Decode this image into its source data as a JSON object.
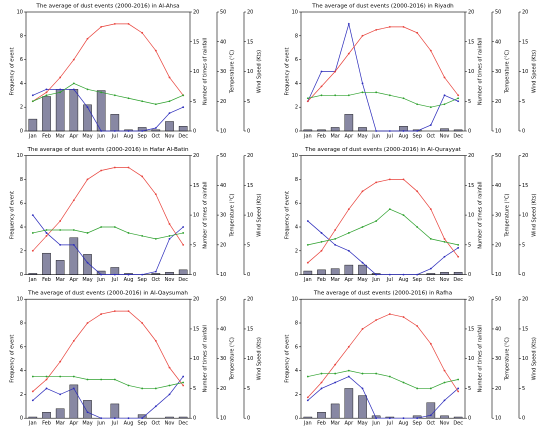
{
  "chart_data": [
    {
      "type": "bar",
      "title": "The average of dust events (2000-2016) in Al-Ahsa",
      "categories": [
        "Jan",
        "Feb",
        "Mar",
        "Apr",
        "May",
        "Jun",
        "Jul",
        "Aug",
        "Sep",
        "Oct",
        "Nov",
        "Dec"
      ],
      "values": [
        1,
        2.9,
        3.5,
        3.5,
        2.2,
        3.4,
        1.4,
        0.1,
        0.3,
        0.1,
        0.8,
        0.4
      ],
      "color": "#6a6a8c",
      "ylabel": "Frequency of event",
      "ylim": [
        0,
        10
      ],
      "yticks": [
        0,
        2,
        4,
        6,
        8,
        10
      ],
      "y2label": "Number of times of rainfall",
      "y2lim": [
        0,
        20
      ],
      "y2ticks": [
        0,
        5,
        10,
        15,
        20
      ],
      "y3label": "Temperature (°C)",
      "y3lim": [
        10,
        50
      ],
      "y3ticks": [
        10,
        20,
        30,
        40,
        50
      ],
      "y4label": "Wind Speed (Kts)",
      "y4lim": [
        0,
        20
      ],
      "y4ticks": [
        0,
        5,
        10,
        15,
        20
      ],
      "series": [
        {
          "axis": "y2",
          "color": "#2b2bbb",
          "values": [
            6,
            7,
            7,
            7,
            4,
            0,
            0,
            0,
            0,
            0.5,
            3,
            4
          ]
        },
        {
          "axis": "y3",
          "color": "#e8413a",
          "values": [
            20,
            23,
            28,
            34,
            41,
            45,
            46,
            46,
            43,
            37,
            28,
            22
          ]
        },
        {
          "axis": "y4",
          "color": "#2ca02c",
          "values": [
            5,
            6,
            6.5,
            8,
            7,
            6.5,
            6,
            5.5,
            5,
            4.5,
            5,
            6
          ]
        }
      ]
    },
    {
      "type": "bar",
      "title": "The average of dust events (2000-2016) in Riyadh",
      "categories": [
        "Jan",
        "Feb",
        "Mar",
        "Apr",
        "May",
        "Jun",
        "Jul",
        "Aug",
        "Sep",
        "Oct",
        "Nov",
        "Dec"
      ],
      "values": [
        0.1,
        0.1,
        0.3,
        1.4,
        0.3,
        0,
        0,
        0.4,
        0.1,
        0,
        0.2,
        0.1
      ],
      "color": "#6a6a8c",
      "ylabel": "Frequency of event",
      "ylim": [
        0,
        10
      ],
      "yticks": [
        0,
        2,
        4,
        6,
        8,
        10
      ],
      "y2label": "Number of times of rainfall",
      "y2lim": [
        0,
        20
      ],
      "y2ticks": [
        0,
        5,
        10,
        15,
        20
      ],
      "y3label": "Temperature (°C)",
      "y3lim": [
        10,
        50
      ],
      "y3ticks": [
        10,
        20,
        30,
        40,
        50
      ],
      "y4label": "Wind Speed (Kts)",
      "y4lim": [
        0,
        20
      ],
      "y4ticks": [
        0,
        5,
        10,
        15,
        20
      ],
      "series": [
        {
          "axis": "y2",
          "color": "#2b2bbb",
          "values": [
            5,
            10,
            10,
            18,
            8,
            0,
            0,
            0,
            0,
            1,
            6,
            5
          ]
        },
        {
          "axis": "y3",
          "color": "#e8413a",
          "values": [
            20,
            25,
            30,
            36,
            42,
            44,
            45,
            45,
            43,
            37,
            28,
            22
          ]
        },
        {
          "axis": "y4",
          "color": "#2ca02c",
          "values": [
            5.5,
            6,
            6,
            6,
            6.5,
            6.5,
            6,
            5.5,
            4.5,
            4,
            4.5,
            5.5
          ]
        }
      ]
    },
    {
      "type": "bar",
      "title": "The average of dust events (2000-2016) in Hafar Al-Batin",
      "categories": [
        "Jan",
        "Feb",
        "Mar",
        "Apr",
        "May",
        "Jun",
        "Jul",
        "Aug",
        "Sep",
        "Oct",
        "Nov",
        "Dec"
      ],
      "values": [
        0.1,
        1.8,
        1.2,
        3.1,
        1.7,
        0.3,
        0.6,
        0.1,
        0,
        0.1,
        0.2,
        0.4
      ],
      "color": "#6a6a8c",
      "ylabel": "Frequency of event",
      "ylim": [
        0,
        10
      ],
      "yticks": [
        0,
        2,
        4,
        6,
        8,
        10
      ],
      "y2label": "Number of times of rainfall",
      "y2lim": [
        0,
        20
      ],
      "y2ticks": [
        0,
        5,
        10,
        15,
        20
      ],
      "y3label": "Temperature (°C)",
      "y3lim": [
        10,
        50
      ],
      "y3ticks": [
        10,
        20,
        30,
        40,
        50
      ],
      "y4label": "Wind Speed (Kts)",
      "y4lim": [
        0,
        20
      ],
      "y4ticks": [
        0,
        5,
        10,
        15,
        20
      ],
      "series": [
        {
          "axis": "y2",
          "color": "#2b2bbb",
          "values": [
            10,
            7,
            5,
            5,
            2,
            0,
            0,
            0,
            0,
            0.5,
            6,
            8
          ]
        },
        {
          "axis": "y3",
          "color": "#e8413a",
          "values": [
            18,
            23,
            28,
            35,
            42,
            45,
            46,
            46,
            43,
            37,
            27,
            20
          ]
        },
        {
          "axis": "y4",
          "color": "#2ca02c",
          "values": [
            7,
            7.5,
            7.5,
            7.5,
            7,
            8,
            8,
            7,
            6.5,
            6,
            6.5,
            7
          ]
        }
      ]
    },
    {
      "type": "bar",
      "title": "The average of dust events (2000-2016) in Al-Qurayyat",
      "categories": [
        "Jan",
        "Feb",
        "Mar",
        "Apr",
        "May",
        "Jun",
        "Jul",
        "Aug",
        "Sep",
        "Oct",
        "Nov",
        "Dec"
      ],
      "values": [
        0.3,
        0.4,
        0.5,
        0.8,
        0.8,
        0.1,
        0,
        0,
        0,
        0.1,
        0.2,
        0.2
      ],
      "color": "#6a6a8c",
      "ylabel": "Frequency of event",
      "ylim": [
        0,
        10
      ],
      "yticks": [
        0,
        2,
        4,
        6,
        8,
        10
      ],
      "y2label": "Number of times of rainfall",
      "y2lim": [
        0,
        20
      ],
      "y2ticks": [
        0,
        5,
        10,
        15,
        20
      ],
      "y3label": "Temperature (°C)",
      "y3lim": [
        10,
        50
      ],
      "y3ticks": [
        10,
        20,
        30,
        40,
        50
      ],
      "y4label": "Wind Speed (Kts)",
      "y4lim": [
        0,
        20
      ],
      "y4ticks": [
        0,
        5,
        10,
        15,
        20
      ],
      "series": [
        {
          "axis": "y2",
          "color": "#2b2bbb",
          "values": [
            9,
            7,
            5,
            4,
            2,
            0,
            0,
            0,
            0,
            1,
            3,
            4.5
          ]
        },
        {
          "axis": "y3",
          "color": "#e8413a",
          "values": [
            14,
            18,
            25,
            32,
            38,
            41,
            42,
            42,
            38,
            32,
            22,
            16
          ]
        },
        {
          "axis": "y4",
          "color": "#2ca02c",
          "values": [
            5,
            5.5,
            6,
            7,
            8,
            9,
            11,
            10,
            8,
            6,
            5.5,
            5
          ]
        }
      ]
    },
    {
      "type": "bar",
      "title": "The average of dust events (2000-2016) in Al-Qaysumah",
      "categories": [
        "Jan",
        "Feb",
        "Mar",
        "Apr",
        "May",
        "Jun",
        "Jul",
        "Aug",
        "Sep",
        "Oct",
        "Nov",
        "Dec"
      ],
      "values": [
        0.1,
        0.5,
        0.8,
        2.8,
        1.5,
        0,
        1.2,
        0,
        0.3,
        0,
        0.1,
        0.1
      ],
      "color": "#6a6a8c",
      "ylabel": "Frequency of event",
      "ylim": [
        0,
        10
      ],
      "yticks": [
        0,
        2,
        4,
        6,
        8,
        10
      ],
      "y2label": "Number of times of rainfall",
      "y2lim": [
        0,
        20
      ],
      "y2ticks": [
        0,
        5,
        10,
        15,
        20
      ],
      "y3label": "Temperature (°C)",
      "y3lim": [
        10,
        50
      ],
      "y3ticks": [
        10,
        20,
        30,
        40,
        50
      ],
      "y4label": "Wind Speed (Kts)",
      "y4lim": [
        0,
        20
      ],
      "y4ticks": [
        0,
        5,
        10,
        15,
        20
      ],
      "series": [
        {
          "axis": "y2",
          "color": "#2b2bbb",
          "values": [
            3,
            5,
            4,
            5,
            1,
            0,
            0,
            0,
            0,
            2,
            4,
            7
          ]
        },
        {
          "axis": "y3",
          "color": "#e8413a",
          "values": [
            19,
            23,
            29,
            36,
            42,
            45,
            46,
            46,
            42,
            36,
            27,
            21
          ]
        },
        {
          "axis": "y4",
          "color": "#2ca02c",
          "values": [
            7,
            7,
            7,
            7,
            6.5,
            6.5,
            6.5,
            5.5,
            5,
            5,
            5.5,
            6
          ]
        }
      ]
    },
    {
      "type": "bar",
      "title": "The average of dust events (2000-2016) in Rafha",
      "categories": [
        "Jan",
        "Feb",
        "Mar",
        "Apr",
        "May",
        "Jun",
        "Jul",
        "Aug",
        "Sep",
        "Oct",
        "Nov",
        "Dec"
      ],
      "values": [
        0.1,
        0.5,
        1.2,
        2.5,
        1.9,
        0.2,
        0.1,
        0,
        0.2,
        1.3,
        0.2,
        0.1
      ],
      "color": "#6a6a8c",
      "ylabel": "Frequency of event",
      "ylim": [
        0,
        10
      ],
      "yticks": [
        0,
        2,
        4,
        6,
        8,
        10
      ],
      "y2label": "Number of times of rainfall",
      "y2lim": [
        0,
        20
      ],
      "y2ticks": [
        0,
        5,
        10,
        15,
        20
      ],
      "y3label": "Temperature (°C)",
      "y3lim": [
        10,
        50
      ],
      "y3ticks": [
        10,
        20,
        30,
        40,
        50
      ],
      "y4label": "Wind Speed (Kts)",
      "y4lim": [
        0,
        20
      ],
      "y4ticks": [
        0,
        5,
        10,
        15,
        20
      ],
      "series": [
        {
          "axis": "y2",
          "color": "#2b2bbb",
          "values": [
            3,
            5,
            6,
            7,
            5,
            0,
            0,
            0,
            0,
            0.5,
            3,
            5
          ]
        },
        {
          "axis": "y3",
          "color": "#e8413a",
          "values": [
            17,
            22,
            28,
            34,
            40,
            43,
            45,
            44,
            41,
            35,
            26,
            19
          ]
        },
        {
          "axis": "y4",
          "color": "#2ca02c",
          "values": [
            7,
            7.5,
            7.5,
            8,
            7.5,
            7.5,
            7,
            6,
            5,
            5,
            6,
            6.5
          ]
        }
      ]
    }
  ]
}
